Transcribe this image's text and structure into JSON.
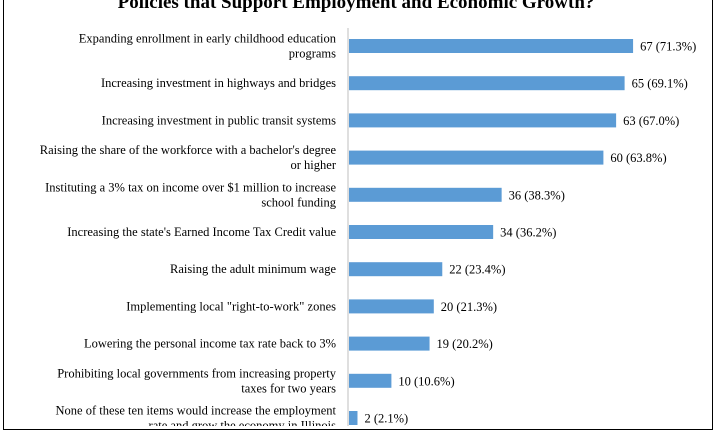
{
  "chart_data": {
    "type": "bar",
    "orientation": "horizontal",
    "title": "Policies that Support Employment and Economic Growth?",
    "bar_color": "#5b9bd5",
    "xlim": [
      0,
      100
    ],
    "grid": false,
    "legend": "none",
    "categories": [
      "Expanding enrollment in early childhood education programs",
      "Increasing investment in highways and bridges",
      "Increasing investment in public transit systems",
      "Raising the share of the workforce with a bachelor's degree or higher",
      "Instituting a 3% tax on income over $1 million to increase school funding",
      "Increasing the state's Earned Income Tax Credit value",
      "Raising the adult minimum wage",
      "Implementing local \"right-to-work\" zones",
      "Lowering the personal income tax rate back to 3%",
      "Prohibiting local governments from increasing property taxes for two years",
      "None of these ten items would increase the employment rate and grow the economy in Illinois"
    ],
    "category_lines": [
      [
        "Expanding enrollment in early childhood education",
        "programs"
      ],
      [
        "Increasing investment in highways and bridges"
      ],
      [
        "Increasing investment in public transit systems"
      ],
      [
        "Raising the share of the workforce with a bachelor's degree",
        "or higher"
      ],
      [
        "Instituting a 3% tax on income over $1 million to increase",
        "school funding"
      ],
      [
        "Increasing the state's Earned Income Tax Credit value"
      ],
      [
        "Raising the adult minimum wage"
      ],
      [
        "Implementing local \"right-to-work\" zones"
      ],
      [
        "Lowering the personal income tax rate back to 3%"
      ],
      [
        "Prohibiting local governments from increasing property",
        "taxes for two years"
      ],
      [
        "None of these ten items would increase the employment",
        "rate and grow the economy in Illinois"
      ]
    ],
    "values": [
      67,
      65,
      63,
      60,
      36,
      34,
      22,
      20,
      19,
      10,
      2
    ],
    "percents": [
      71.3,
      69.1,
      67.0,
      63.8,
      38.3,
      36.2,
      23.4,
      21.3,
      20.2,
      10.6,
      2.1
    ],
    "data_labels": [
      "67 (71.3%)",
      "65 (69.1%)",
      "63 (67.0%)",
      "60 (63.8%)",
      "36 (38.3%)",
      "34 (36.2%)",
      "22 (23.4%)",
      "20 (21.3%)",
      "19 (20.2%)",
      "10 (10.6%)",
      "2 (2.1%)"
    ]
  }
}
